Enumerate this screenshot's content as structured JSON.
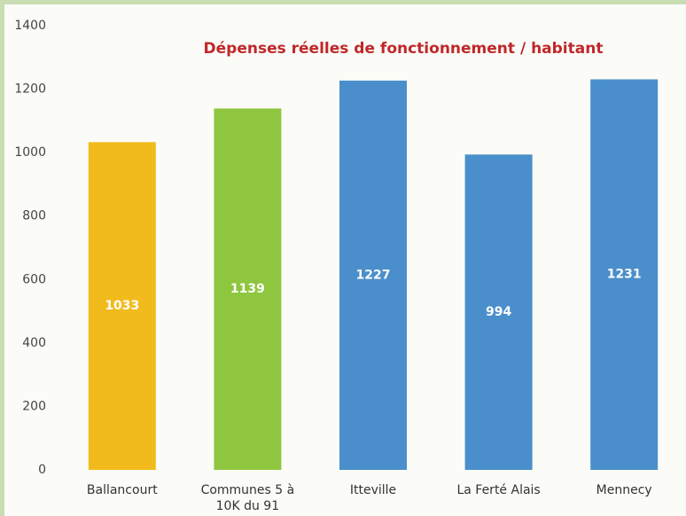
{
  "chart_data": {
    "type": "bar",
    "title": "Dépenses réelles de fonctionnement / habitant",
    "categories": [
      "Ballancourt",
      "Communes 5 à 10K du 91",
      "Itteville",
      "La Ferté Alais",
      "Mennecy"
    ],
    "values": [
      1033,
      1139,
      1227,
      994,
      1231
    ],
    "colors": [
      "#f2bb1d",
      "#8ec63f",
      "#4a8fcb",
      "#4a8fcb",
      "#4a8fcb"
    ],
    "ylim": [
      0,
      1400
    ],
    "yticks": [
      0,
      200,
      400,
      600,
      800,
      1000,
      1200,
      1400
    ],
    "grid": false
  }
}
